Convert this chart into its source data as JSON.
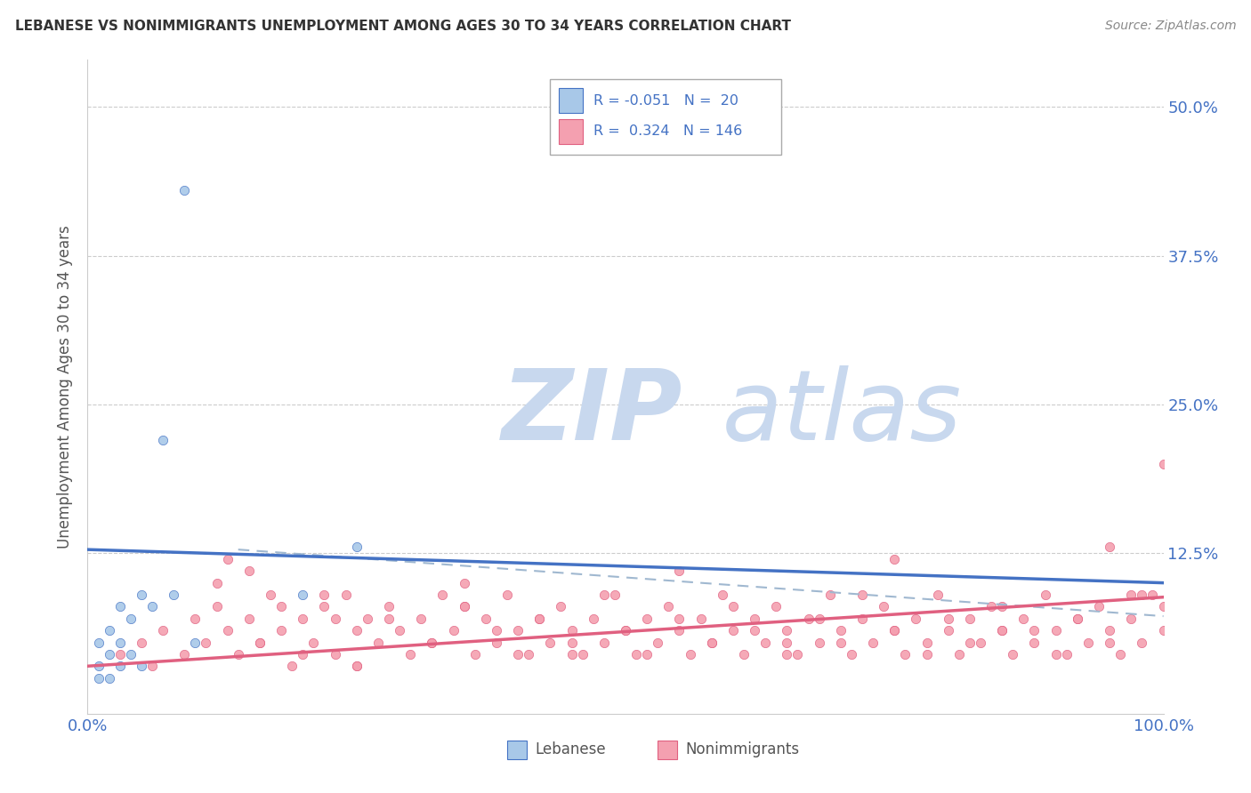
{
  "title": "LEBANESE VS NONIMMIGRANTS UNEMPLOYMENT AMONG AGES 30 TO 34 YEARS CORRELATION CHART",
  "source": "Source: ZipAtlas.com",
  "ylabel": "Unemployment Among Ages 30 to 34 years",
  "ytick_labels": [
    "",
    "12.5%",
    "25.0%",
    "37.5%",
    "50.0%"
  ],
  "ytick_values": [
    0,
    0.125,
    0.25,
    0.375,
    0.5
  ],
  "xlim": [
    0.0,
    1.0
  ],
  "ylim": [
    -0.01,
    0.54
  ],
  "color_lebanese": "#a8c8e8",
  "color_lebanese_line": "#4472c4",
  "color_nonimm": "#f4a0b0",
  "color_nonimm_line": "#e06080",
  "color_dashed": "#a0b8d0",
  "color_title": "#333333",
  "color_source": "#888888",
  "color_axis_label": "#555555",
  "color_tick_blue": "#4472c4",
  "color_grid": "#cccccc",
  "watermark_zip_color": "#c8d8ee",
  "watermark_atlas_color": "#c8d8ee",
  "leb_line_x0": 0.0,
  "leb_line_y0": 0.128,
  "leb_line_x1": 1.0,
  "leb_line_y1": 0.1,
  "nonimm_line_x0": 0.0,
  "nonimm_line_y0": 0.03,
  "nonimm_line_x1": 1.0,
  "nonimm_line_y1": 0.088,
  "dash_line_x0": 0.14,
  "dash_line_y0": 0.128,
  "dash_line_x1": 1.0,
  "dash_line_y1": 0.072,
  "leb_x": [
    0.01,
    0.01,
    0.01,
    0.02,
    0.02,
    0.02,
    0.03,
    0.03,
    0.03,
    0.04,
    0.04,
    0.05,
    0.05,
    0.06,
    0.07,
    0.08,
    0.09,
    0.1,
    0.2,
    0.25
  ],
  "leb_y": [
    0.02,
    0.03,
    0.05,
    0.02,
    0.04,
    0.06,
    0.03,
    0.05,
    0.08,
    0.04,
    0.07,
    0.03,
    0.09,
    0.08,
    0.22,
    0.09,
    0.43,
    0.05,
    0.09,
    0.13
  ],
  "nonimm_x": [
    0.03,
    0.05,
    0.06,
    0.07,
    0.09,
    0.1,
    0.11,
    0.12,
    0.13,
    0.14,
    0.15,
    0.16,
    0.17,
    0.18,
    0.19,
    0.2,
    0.21,
    0.22,
    0.23,
    0.24,
    0.25,
    0.26,
    0.27,
    0.28,
    0.29,
    0.3,
    0.31,
    0.32,
    0.33,
    0.34,
    0.35,
    0.36,
    0.37,
    0.38,
    0.39,
    0.4,
    0.41,
    0.42,
    0.43,
    0.44,
    0.45,
    0.46,
    0.47,
    0.48,
    0.49,
    0.5,
    0.51,
    0.52,
    0.53,
    0.54,
    0.55,
    0.56,
    0.57,
    0.58,
    0.59,
    0.6,
    0.61,
    0.62,
    0.63,
    0.64,
    0.65,
    0.66,
    0.67,
    0.68,
    0.69,
    0.7,
    0.71,
    0.72,
    0.73,
    0.74,
    0.75,
    0.76,
    0.77,
    0.78,
    0.79,
    0.8,
    0.81,
    0.82,
    0.83,
    0.84,
    0.85,
    0.86,
    0.87,
    0.88,
    0.89,
    0.9,
    0.91,
    0.92,
    0.93,
    0.94,
    0.95,
    0.96,
    0.97,
    0.98,
    0.99,
    1.0,
    0.12,
    0.16,
    0.18,
    0.2,
    0.22,
    0.25,
    0.28,
    0.32,
    0.35,
    0.38,
    0.4,
    0.42,
    0.45,
    0.48,
    0.5,
    0.52,
    0.55,
    0.58,
    0.6,
    0.62,
    0.65,
    0.68,
    0.7,
    0.72,
    0.75,
    0.78,
    0.8,
    0.82,
    0.85,
    0.88,
    0.9,
    0.92,
    0.95,
    0.98,
    1.0,
    0.15,
    0.25,
    0.35,
    0.45,
    0.55,
    0.65,
    0.75,
    0.85,
    0.95,
    0.97,
    1.0,
    0.13,
    0.23
  ],
  "nonimm_y": [
    0.04,
    0.05,
    0.03,
    0.06,
    0.04,
    0.07,
    0.05,
    0.08,
    0.06,
    0.04,
    0.07,
    0.05,
    0.09,
    0.06,
    0.03,
    0.07,
    0.05,
    0.08,
    0.04,
    0.09,
    0.03,
    0.07,
    0.05,
    0.08,
    0.06,
    0.04,
    0.07,
    0.05,
    0.09,
    0.06,
    0.08,
    0.04,
    0.07,
    0.05,
    0.09,
    0.06,
    0.04,
    0.07,
    0.05,
    0.08,
    0.06,
    0.04,
    0.07,
    0.05,
    0.09,
    0.06,
    0.04,
    0.07,
    0.05,
    0.08,
    0.06,
    0.04,
    0.07,
    0.05,
    0.09,
    0.06,
    0.04,
    0.07,
    0.05,
    0.08,
    0.06,
    0.04,
    0.07,
    0.05,
    0.09,
    0.06,
    0.04,
    0.07,
    0.05,
    0.08,
    0.06,
    0.04,
    0.07,
    0.05,
    0.09,
    0.06,
    0.04,
    0.07,
    0.05,
    0.08,
    0.06,
    0.04,
    0.07,
    0.05,
    0.09,
    0.06,
    0.04,
    0.07,
    0.05,
    0.08,
    0.06,
    0.04,
    0.07,
    0.05,
    0.09,
    0.06,
    0.1,
    0.05,
    0.08,
    0.04,
    0.09,
    0.06,
    0.07,
    0.05,
    0.08,
    0.06,
    0.04,
    0.07,
    0.05,
    0.09,
    0.06,
    0.04,
    0.07,
    0.05,
    0.08,
    0.06,
    0.04,
    0.07,
    0.05,
    0.09,
    0.06,
    0.04,
    0.07,
    0.05,
    0.08,
    0.06,
    0.04,
    0.07,
    0.05,
    0.09,
    0.2,
    0.11,
    0.03,
    0.1,
    0.04,
    0.11,
    0.05,
    0.12,
    0.06,
    0.13,
    0.09,
    0.08,
    0.12,
    0.07
  ]
}
